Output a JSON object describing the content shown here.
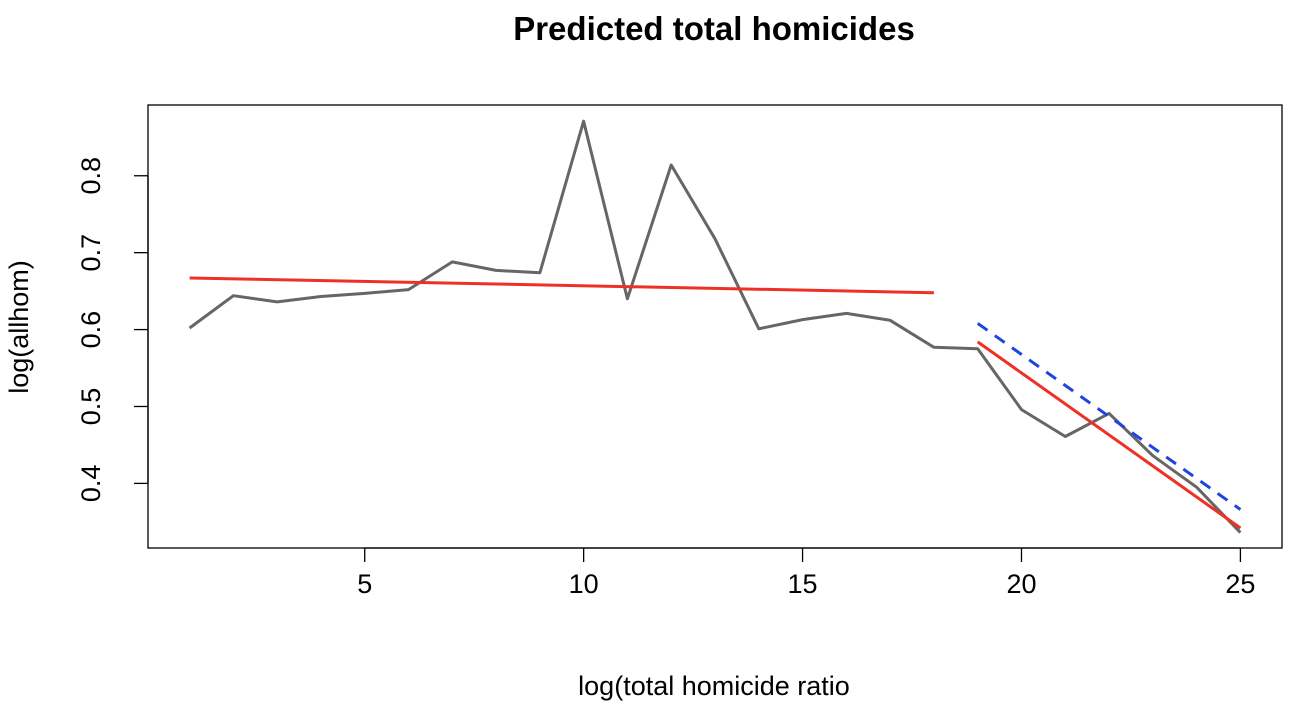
{
  "chart_data": {
    "type": "line",
    "title": "Predicted total homicides",
    "xlabel": "log(total homicide ratio",
    "ylabel": "log(allhom)",
    "xlim": [
      0.05,
      25.95
    ],
    "ylim": [
      0.316,
      0.892
    ],
    "x_ticks": [
      5,
      10,
      15,
      20,
      25
    ],
    "y_ticks": [
      0.4,
      0.5,
      0.6,
      0.7,
      0.8
    ],
    "grid": false,
    "series": [
      {
        "id": "observed",
        "color": "#666666",
        "style": "solid",
        "x": [
          1,
          2,
          3,
          4,
          5,
          6,
          7,
          8,
          9,
          10,
          11,
          12,
          13,
          14,
          15,
          16,
          17,
          18,
          19,
          20,
          21,
          22,
          23,
          24,
          25
        ],
        "y": [
          0.602,
          0.644,
          0.636,
          0.643,
          0.647,
          0.652,
          0.688,
          0.677,
          0.674,
          0.871,
          0.64,
          0.814,
          0.718,
          0.601,
          0.613,
          0.621,
          0.612,
          0.577,
          0.575,
          0.496,
          0.461,
          0.491,
          0.436,
          0.395,
          0.336
        ]
      },
      {
        "id": "fit-pre",
        "color": "#ee3124",
        "style": "solid",
        "x": [
          1,
          18
        ],
        "y": [
          0.667,
          0.648
        ]
      },
      {
        "id": "fit-post",
        "color": "#ee3124",
        "style": "solid",
        "x": [
          19,
          25
        ],
        "y": [
          0.584,
          0.342
        ]
      },
      {
        "id": "counterfactual",
        "color": "#1f44e0",
        "style": "dashed",
        "x": [
          19,
          25
        ],
        "y": [
          0.608,
          0.366
        ]
      }
    ]
  }
}
